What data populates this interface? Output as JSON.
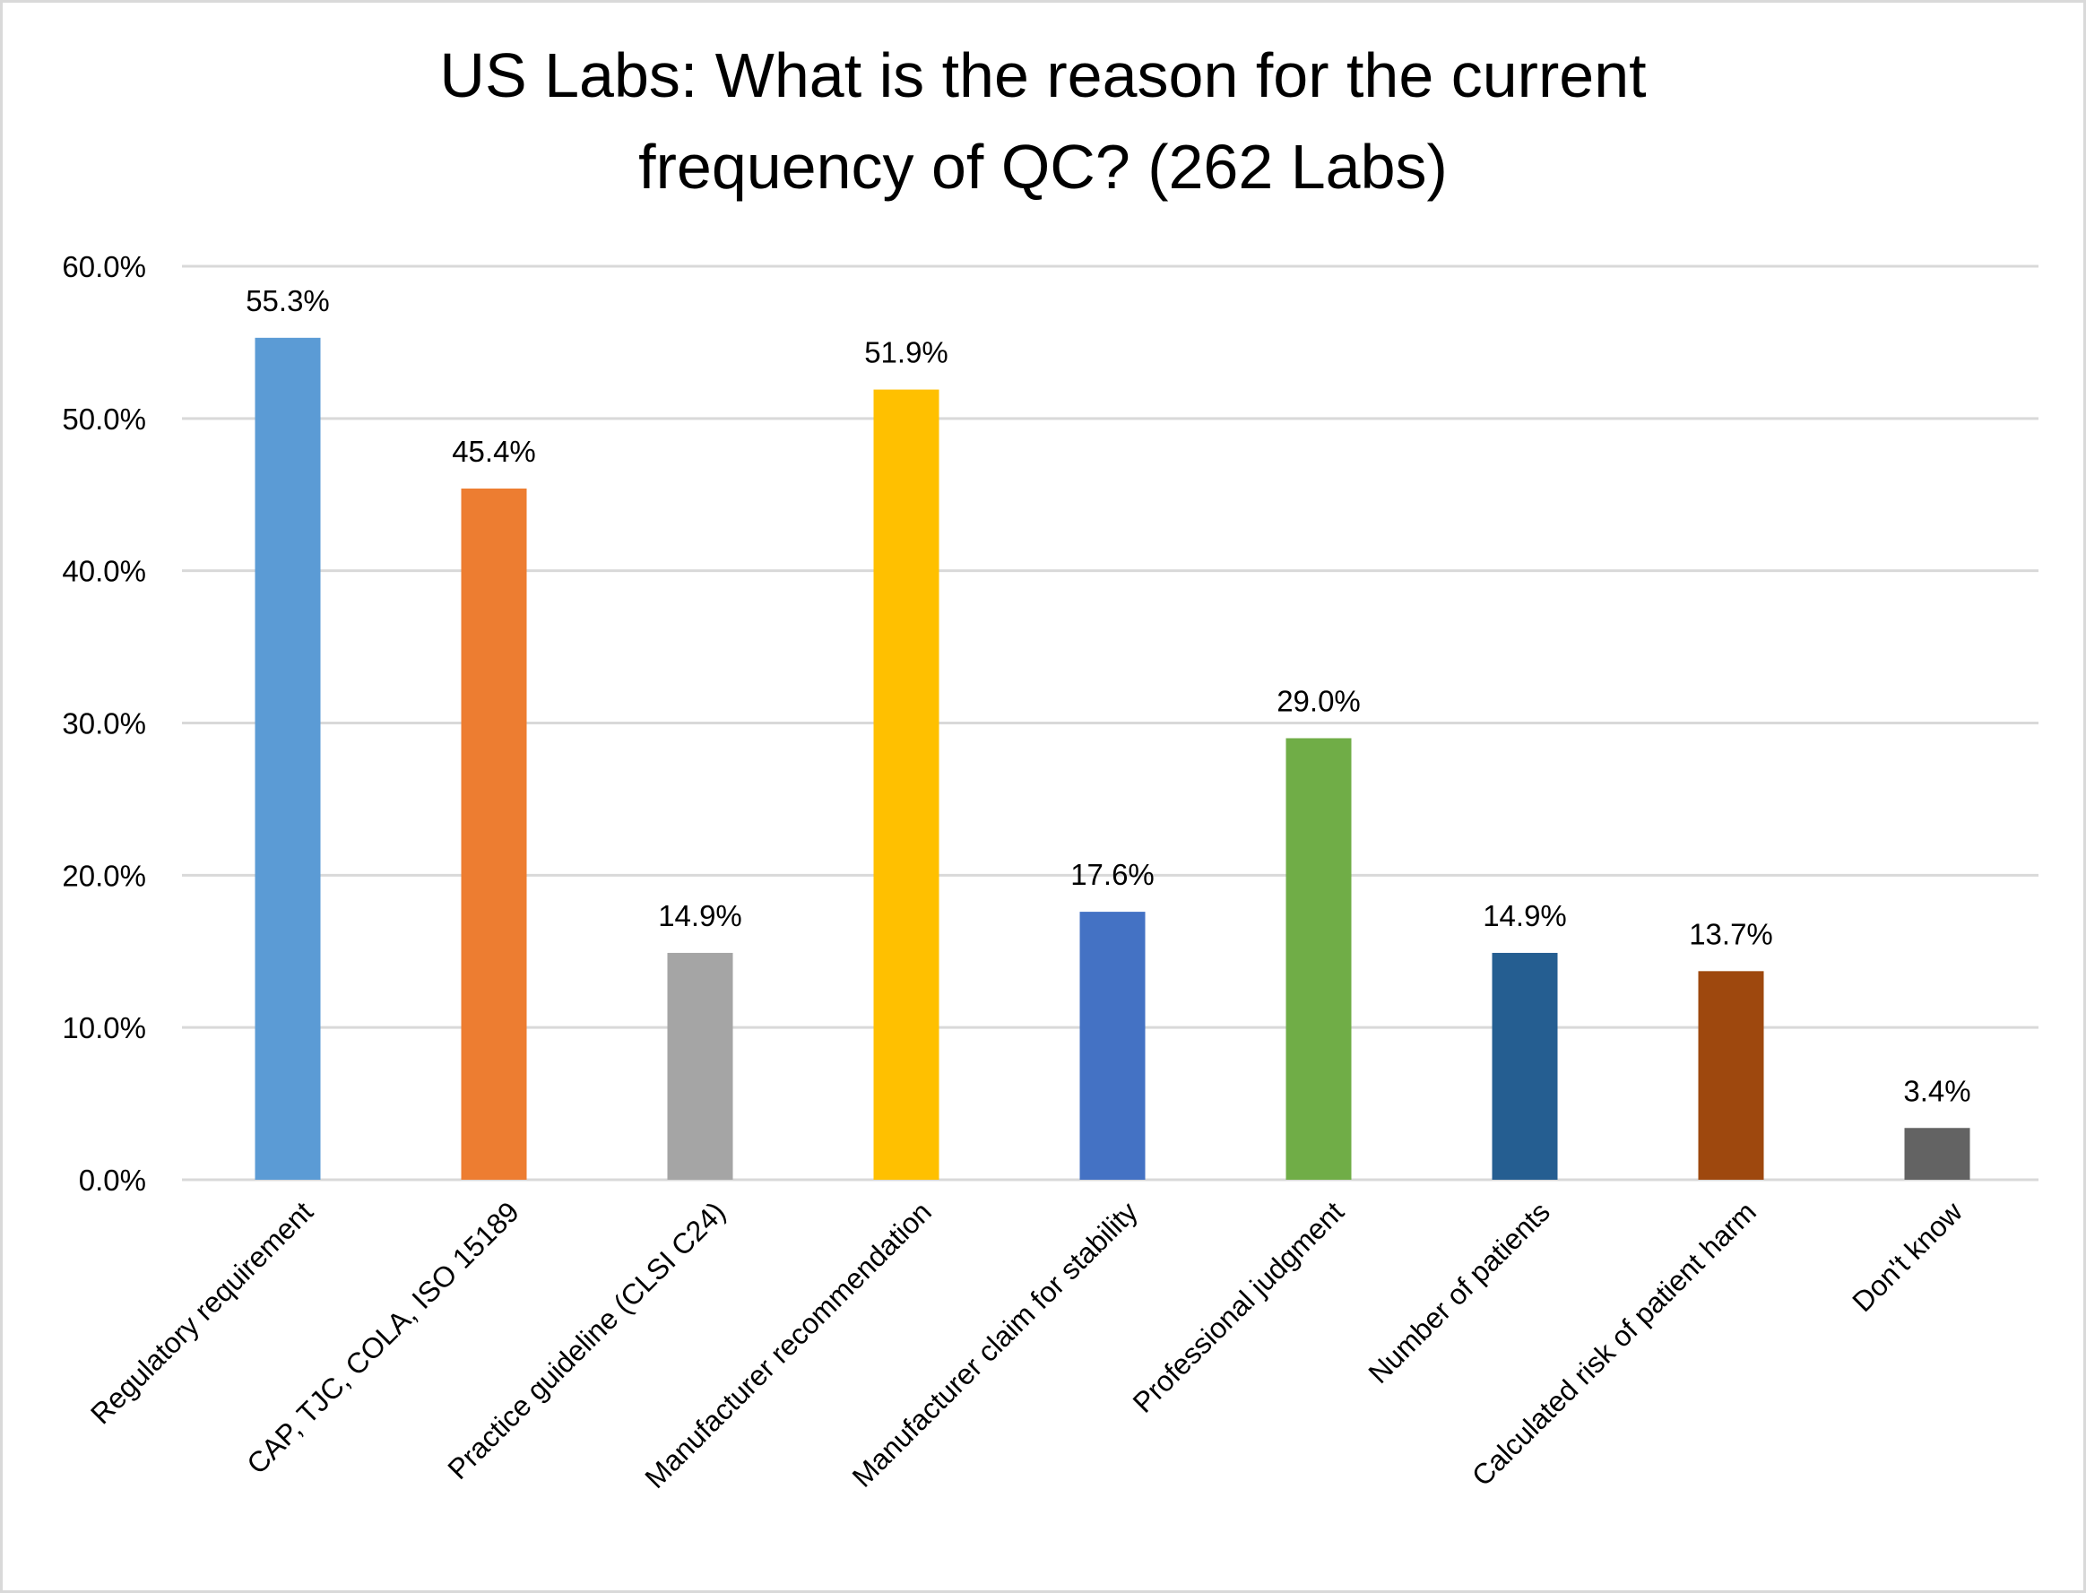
{
  "chart_data": {
    "type": "bar",
    "title_lines": [
      "US Labs: What is the reason for the current",
      "frequency of QC? (262 Labs)"
    ],
    "categories": [
      "Regulatory requirement",
      "CAP, TJC, COLA, ISO 15189",
      "Practice guideline (CLSI C24)",
      "Manufacturer recommendation",
      "Manufacturer claim for stability",
      "Professional judgment",
      "Number of patients",
      "Calculated risk of patient harm",
      "Don't know"
    ],
    "values": [
      55.3,
      45.4,
      14.9,
      51.9,
      17.6,
      29.0,
      14.9,
      13.7,
      3.4
    ],
    "data_labels": [
      "55.3%",
      "45.4%",
      "14.9%",
      "51.9%",
      "17.6%",
      "29.0%",
      "14.9%",
      "13.7%",
      "3.4%"
    ],
    "colors": [
      "#5b9bd5",
      "#ed7d31",
      "#a5a5a5",
      "#ffc000",
      "#4472c4",
      "#70ad47",
      "#255e91",
      "#9e480e",
      "#636363"
    ],
    "yticks": [
      "0.0%",
      "10.0%",
      "20.0%",
      "30.0%",
      "40.0%",
      "50.0%",
      "60.0%"
    ],
    "ylim": [
      0,
      60
    ],
    "xlabel": "",
    "ylabel": "",
    "grid": true
  }
}
